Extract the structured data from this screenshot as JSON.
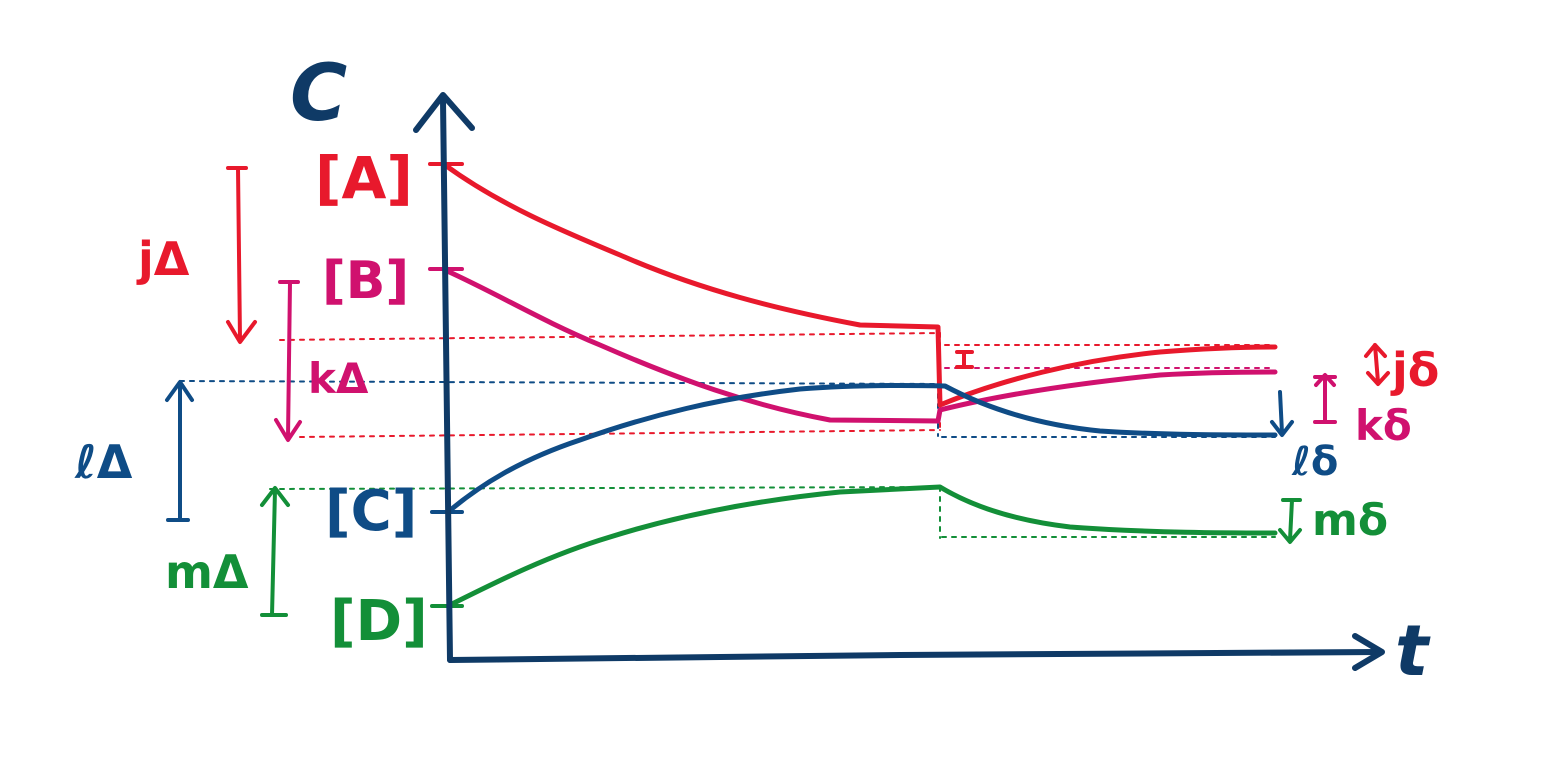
{
  "axes": {
    "y_label": "C",
    "x_label": "t"
  },
  "species": {
    "A": {
      "label": "[A]",
      "color": "#e8192c"
    },
    "B": {
      "label": "[B]",
      "color": "#d0116e"
    },
    "C": {
      "label": "[C]",
      "color": "#0f4c86"
    },
    "D": {
      "label": "[D]",
      "color": "#138f38"
    }
  },
  "changes_before": {
    "A": "jΔ",
    "B": "kΔ",
    "C": "ℓΔ",
    "D": "mΔ"
  },
  "changes_after": {
    "A": "jδ",
    "B": "kδ",
    "C": "ℓδ",
    "D": "mδ"
  },
  "colors": {
    "axis": "#0f3a66"
  }
}
